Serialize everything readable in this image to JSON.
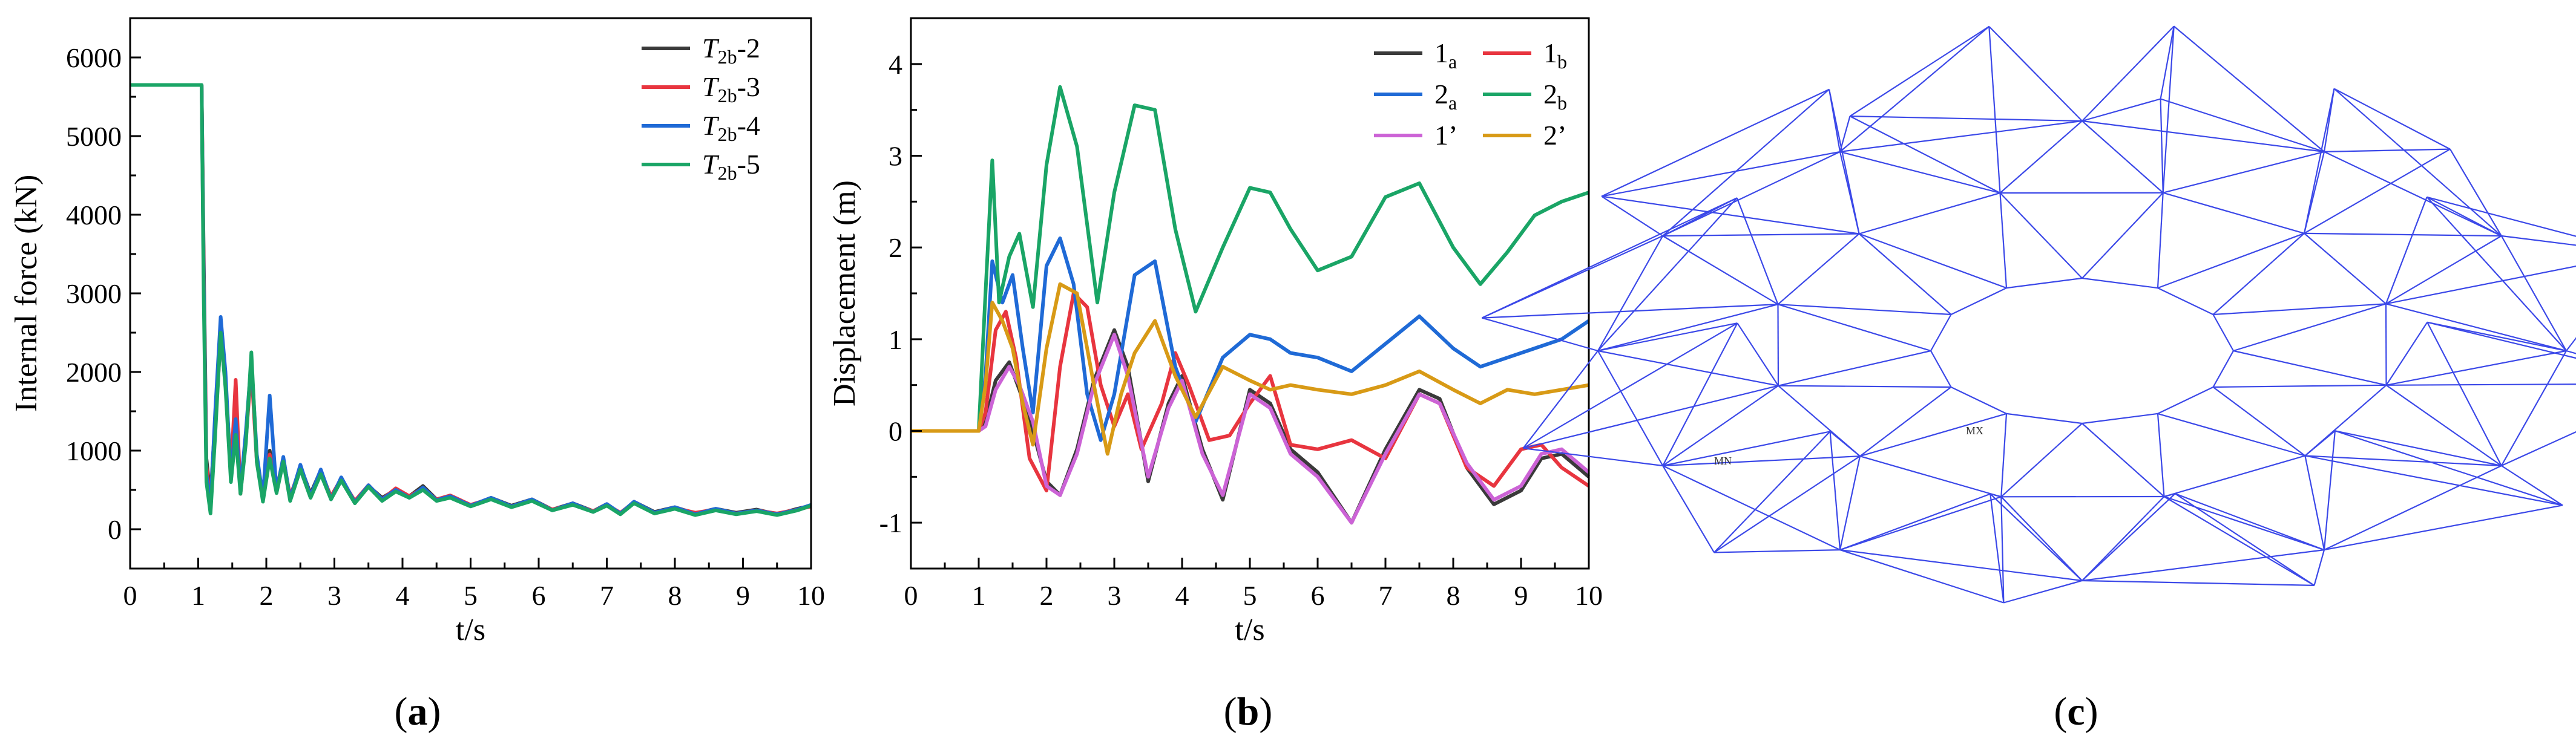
{
  "figure": {
    "panel_labels": [
      {
        "open": "(",
        "letter": "a",
        "close": ")"
      },
      {
        "open": "(",
        "letter": "b",
        "close": ")"
      },
      {
        "open": "(",
        "letter": "c",
        "close": ")"
      }
    ]
  },
  "truss": {
    "color": "#3b48e8",
    "label_min": "MN",
    "label_max": "MX"
  },
  "chart_data": [
    {
      "type": "line",
      "panel": "a",
      "title": "",
      "xlabel": "t/s",
      "ylabel": "Internal force (kN)",
      "xlim": [
        0,
        10
      ],
      "ylim": [
        -500,
        6500
      ],
      "xticks": [
        0,
        1,
        2,
        3,
        4,
        5,
        6,
        7,
        8,
        9,
        10
      ],
      "yticks": [
        0,
        1000,
        2000,
        3000,
        4000,
        5000,
        6000
      ],
      "legend_position": "top-right",
      "series": [
        {
          "name": "T2b-2",
          "legend_base": "T",
          "legend_sub": "2b",
          "legend_suffix": "-2",
          "color": "#3a3a3a",
          "x": [
            0,
            1.05,
            1.08,
            1.12,
            1.18,
            1.25,
            1.33,
            1.4,
            1.48,
            1.55,
            1.62,
            1.7,
            1.78,
            1.86,
            1.95,
            2.05,
            2.15,
            2.25,
            2.35,
            2.5,
            2.65,
            2.8,
            2.95,
            3.1,
            3.3,
            3.5,
            3.7,
            3.9,
            4.1,
            4.3,
            4.5,
            4.7,
            5.0,
            5.3,
            5.6,
            5.9,
            6.2,
            6.5,
            6.8,
            7.0,
            7.2,
            7.4,
            7.7,
            8.0,
            8.3,
            8.6,
            8.9,
            9.2,
            9.5,
            9.8,
            10
          ],
          "y": [
            5650,
            5650,
            3500,
            900,
            400,
            1400,
            2550,
            1900,
            700,
            1300,
            500,
            1200,
            2100,
            900,
            400,
            1000,
            500,
            900,
            400,
            800,
            450,
            750,
            400,
            650,
            350,
            550,
            400,
            500,
            420,
            550,
            380,
            420,
            300,
            400,
            300,
            380,
            250,
            330,
            230,
            320,
            200,
            350,
            220,
            280,
            200,
            260,
            210,
            250,
            190,
            260,
            300
          ]
        },
        {
          "name": "T2b-3",
          "legend_base": "T",
          "legend_sub": "2b",
          "legend_suffix": "-3",
          "color": "#e8353f",
          "x": [
            0,
            1.05,
            1.08,
            1.12,
            1.18,
            1.25,
            1.33,
            1.4,
            1.48,
            1.55,
            1.62,
            1.7,
            1.78,
            1.86,
            1.95,
            2.05,
            2.15,
            2.25,
            2.35,
            2.5,
            2.65,
            2.8,
            2.95,
            3.1,
            3.3,
            3.5,
            3.7,
            3.9,
            4.1,
            4.3,
            4.5,
            4.7,
            5.0,
            5.3,
            5.6,
            5.9,
            6.2,
            6.5,
            6.8,
            7.0,
            7.2,
            7.4,
            7.7,
            8.0,
            8.3,
            8.6,
            8.9,
            9.2,
            9.5,
            9.8,
            10
          ],
          "y": [
            5650,
            5650,
            3300,
            800,
            350,
            1300,
            2450,
            1850,
            700,
            1900,
            450,
            1150,
            2050,
            850,
            420,
            950,
            520,
            880,
            420,
            780,
            430,
            720,
            420,
            640,
            360,
            560,
            380,
            520,
            420,
            520,
            380,
            430,
            310,
            390,
            290,
            370,
            250,
            320,
            230,
            310,
            210,
            340,
            210,
            270,
            210,
            250,
            200,
            240,
            200,
            250,
            290
          ]
        },
        {
          "name": "T2b-4",
          "legend_base": "T",
          "legend_sub": "2b",
          "legend_suffix": "-4",
          "color": "#1f6ad6",
          "x": [
            0,
            1.05,
            1.08,
            1.12,
            1.18,
            1.25,
            1.33,
            1.4,
            1.48,
            1.55,
            1.62,
            1.7,
            1.78,
            1.86,
            1.95,
            2.05,
            2.15,
            2.25,
            2.35,
            2.5,
            2.65,
            2.8,
            2.95,
            3.1,
            3.3,
            3.5,
            3.7,
            3.9,
            4.1,
            4.3,
            4.5,
            4.7,
            5.0,
            5.3,
            5.6,
            5.9,
            6.2,
            6.5,
            6.8,
            7.0,
            7.2,
            7.4,
            7.7,
            8.0,
            8.3,
            8.6,
            8.9,
            9.2,
            9.5,
            9.8,
            10
          ],
          "y": [
            5650,
            5650,
            3200,
            700,
            300,
            1500,
            2700,
            2000,
            650,
            1400,
            500,
            1250,
            2150,
            950,
            400,
            1700,
            480,
            920,
            380,
            820,
            420,
            760,
            380,
            660,
            340,
            560,
            380,
            500,
            400,
            530,
            370,
            420,
            300,
            400,
            290,
            380,
            240,
            330,
            220,
            320,
            200,
            350,
            210,
            280,
            190,
            260,
            200,
            240,
            190,
            250,
            310
          ]
        },
        {
          "name": "T2b-5",
          "legend_base": "T",
          "legend_sub": "2b",
          "legend_suffix": "-5",
          "color": "#1aa566",
          "x": [
            0,
            1.05,
            1.08,
            1.12,
            1.18,
            1.25,
            1.33,
            1.4,
            1.48,
            1.55,
            1.62,
            1.7,
            1.78,
            1.86,
            1.95,
            2.05,
            2.15,
            2.25,
            2.35,
            2.5,
            2.65,
            2.8,
            2.95,
            3.1,
            3.3,
            3.5,
            3.7,
            3.9,
            4.1,
            4.3,
            4.5,
            4.7,
            5.0,
            5.3,
            5.6,
            5.9,
            6.2,
            6.5,
            6.8,
            7.0,
            7.2,
            7.4,
            7.7,
            8.0,
            8.3,
            8.6,
            8.9,
            9.2,
            9.5,
            9.8,
            10
          ],
          "y": [
            5650,
            5650,
            3000,
            600,
            200,
            1200,
            2500,
            1800,
            600,
            1200,
            450,
            1100,
            2250,
            850,
            350,
            900,
            460,
            860,
            360,
            760,
            400,
            700,
            380,
            620,
            330,
            540,
            360,
            480,
            400,
            500,
            360,
            400,
            290,
            380,
            280,
            360,
            240,
            310,
            220,
            300,
            190,
            330,
            200,
            260,
            180,
            240,
            190,
            230,
            180,
            240,
            300
          ]
        }
      ]
    },
    {
      "type": "line",
      "panel": "b",
      "title": "",
      "xlabel": "t/s",
      "ylabel": "Displacement (m)",
      "xlim": [
        0,
        10
      ],
      "ylim": [
        -1.5,
        4.5
      ],
      "xticks": [
        0,
        1,
        2,
        3,
        4,
        5,
        6,
        7,
        8,
        9,
        10
      ],
      "yticks": [
        -1,
        0,
        1,
        2,
        3,
        4
      ],
      "legend_position": "top-right",
      "series": [
        {
          "name": "1a",
          "legend_base": "1",
          "legend_sub": "a",
          "legend_suffix": "",
          "color": "#3a3a3a",
          "x": [
            0,
            1.0,
            1.1,
            1.25,
            1.45,
            1.6,
            1.8,
            2.0,
            2.2,
            2.45,
            2.7,
            3.0,
            3.2,
            3.5,
            3.8,
            4.0,
            4.3,
            4.6,
            5.0,
            5.3,
            5.6,
            6.0,
            6.5,
            7.0,
            7.5,
            7.8,
            8.2,
            8.6,
            9.0,
            9.3,
            9.6,
            10
          ],
          "y": [
            0,
            0,
            0.1,
            0.55,
            0.75,
            0.45,
            0.0,
            -0.55,
            -0.7,
            -0.2,
            0.55,
            1.1,
            0.7,
            -0.55,
            0.3,
            0.6,
            -0.2,
            -0.75,
            0.45,
            0.3,
            -0.2,
            -0.45,
            -1.0,
            -0.2,
            0.45,
            0.35,
            -0.4,
            -0.8,
            -0.65,
            -0.3,
            -0.25,
            -0.5
          ]
        },
        {
          "name": "1b",
          "legend_base": "1",
          "legend_sub": "b",
          "legend_suffix": "",
          "color": "#e8353f",
          "x": [
            0,
            1.0,
            1.1,
            1.25,
            1.4,
            1.55,
            1.75,
            2.0,
            2.2,
            2.4,
            2.6,
            2.8,
            3.0,
            3.2,
            3.4,
            3.7,
            3.9,
            4.1,
            4.4,
            4.7,
            5.0,
            5.3,
            5.6,
            6.0,
            6.5,
            7.0,
            7.5,
            7.8,
            8.2,
            8.6,
            9.0,
            9.3,
            9.6,
            10
          ],
          "y": [
            0,
            0,
            0.2,
            1.1,
            1.3,
            0.8,
            -0.3,
            -0.65,
            0.7,
            1.5,
            1.35,
            0.5,
            0.05,
            0.4,
            -0.2,
            0.3,
            0.85,
            0.5,
            -0.1,
            -0.05,
            0.3,
            0.6,
            -0.15,
            -0.2,
            -0.1,
            -0.3,
            0.4,
            0.3,
            -0.4,
            -0.6,
            -0.2,
            -0.15,
            -0.4,
            -0.6
          ]
        },
        {
          "name": "2a",
          "legend_base": "2",
          "legend_sub": "a",
          "legend_suffix": "",
          "color": "#1f6ad6",
          "x": [
            0,
            1.0,
            1.1,
            1.2,
            1.35,
            1.5,
            1.65,
            1.8,
            2.0,
            2.2,
            2.4,
            2.6,
            2.8,
            3.0,
            3.3,
            3.6,
            3.9,
            4.2,
            4.6,
            5.0,
            5.3,
            5.6,
            6.0,
            6.5,
            7.0,
            7.5,
            8.0,
            8.4,
            8.8,
            9.2,
            9.6,
            10
          ],
          "y": [
            0,
            0,
            0.6,
            1.85,
            1.4,
            1.7,
            0.9,
            0.2,
            1.8,
            2.1,
            1.6,
            0.4,
            -0.1,
            0.4,
            1.7,
            1.85,
            0.7,
            0.1,
            0.8,
            1.05,
            1.0,
            0.85,
            0.8,
            0.65,
            0.95,
            1.25,
            0.9,
            0.7,
            0.8,
            0.9,
            1.0,
            1.2
          ]
        },
        {
          "name": "2b",
          "legend_base": "2",
          "legend_sub": "b",
          "legend_suffix": "",
          "color": "#1aa566",
          "x": [
            0,
            1.0,
            1.1,
            1.2,
            1.3,
            1.45,
            1.6,
            1.8,
            2.0,
            2.2,
            2.45,
            2.75,
            3.0,
            3.3,
            3.6,
            3.9,
            4.2,
            4.6,
            5.0,
            5.3,
            5.6,
            6.0,
            6.5,
            7.0,
            7.5,
            8.0,
            8.4,
            8.8,
            9.2,
            9.6,
            10
          ],
          "y": [
            0,
            0,
            1.5,
            2.95,
            1.4,
            1.9,
            2.15,
            1.35,
            2.9,
            3.75,
            3.1,
            1.4,
            2.6,
            3.55,
            3.5,
            2.2,
            1.3,
            2.0,
            2.65,
            2.6,
            2.2,
            1.75,
            1.9,
            2.55,
            2.7,
            2.0,
            1.6,
            1.95,
            2.35,
            2.5,
            2.6
          ]
        },
        {
          "name": "1'",
          "legend_base": "1’",
          "legend_sub": "",
          "legend_suffix": "",
          "color": "#cc63d6",
          "x": [
            0,
            1.0,
            1.1,
            1.25,
            1.45,
            1.6,
            1.8,
            2.0,
            2.2,
            2.45,
            2.7,
            3.0,
            3.2,
            3.5,
            3.8,
            4.0,
            4.3,
            4.6,
            5.0,
            5.3,
            5.6,
            6.0,
            6.5,
            7.0,
            7.5,
            7.8,
            8.2,
            8.6,
            9.0,
            9.3,
            9.6,
            10
          ],
          "y": [
            0,
            0,
            0.05,
            0.45,
            0.7,
            0.5,
            0.1,
            -0.6,
            -0.7,
            -0.25,
            0.5,
            1.05,
            0.6,
            -0.5,
            0.25,
            0.55,
            -0.25,
            -0.7,
            0.4,
            0.25,
            -0.25,
            -0.5,
            -1.0,
            -0.25,
            0.4,
            0.3,
            -0.35,
            -0.75,
            -0.6,
            -0.25,
            -0.2,
            -0.45
          ]
        },
        {
          "name": "2'",
          "legend_base": "2’",
          "legend_sub": "",
          "legend_suffix": "",
          "color": "#d89a16",
          "x": [
            0,
            1.0,
            1.1,
            1.2,
            1.35,
            1.5,
            1.65,
            1.8,
            2.0,
            2.2,
            2.45,
            2.7,
            2.9,
            3.1,
            3.3,
            3.6,
            3.9,
            4.2,
            4.6,
            5.0,
            5.3,
            5.6,
            6.0,
            6.5,
            7.0,
            7.5,
            8.0,
            8.4,
            8.8,
            9.2,
            9.6,
            10
          ],
          "y": [
            0,
            0,
            0.5,
            1.4,
            1.2,
            0.9,
            0.3,
            -0.15,
            0.9,
            1.6,
            1.5,
            0.5,
            -0.25,
            0.4,
            0.85,
            1.2,
            0.6,
            0.15,
            0.7,
            0.55,
            0.45,
            0.5,
            0.45,
            0.4,
            0.5,
            0.65,
            0.45,
            0.3,
            0.45,
            0.4,
            0.45,
            0.5
          ]
        }
      ]
    }
  ]
}
